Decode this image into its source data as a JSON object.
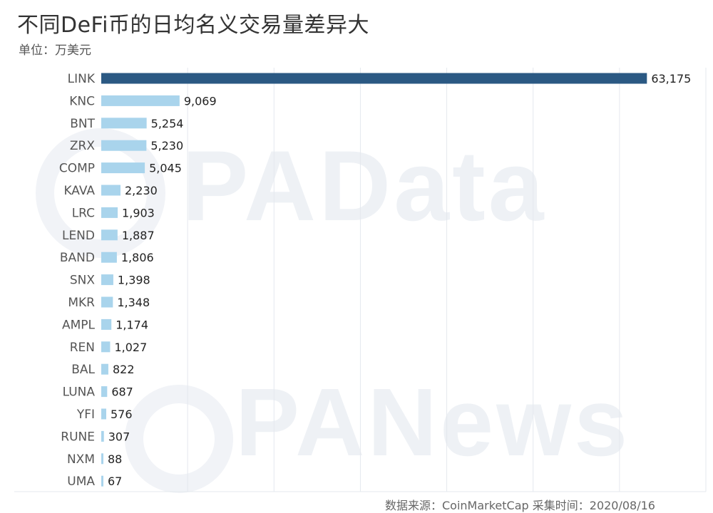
{
  "title": "不同DeFi币的日均名义交易量差异大",
  "subtitle": "单位：万美元",
  "watermark": [
    "PAData",
    "PANews"
  ],
  "source_partial": "数据来源：CoinMarketCap 采集时间：2020/08/16",
  "colors": {
    "highlight": "#2b5983",
    "bar": "#a9d4ec",
    "grid": "#e4e8ee"
  },
  "chart_data": {
    "type": "bar",
    "orientation": "horizontal",
    "title": "不同DeFi币的日均名义交易量差异大",
    "unit": "单位：万美元",
    "categories": [
      "LINK",
      "KNC",
      "BNT",
      "ZRX",
      "COMP",
      "KAVA",
      "LRC",
      "LEND",
      "BAND",
      "SNX",
      "MKR",
      "AMPL",
      "REN",
      "BAL",
      "LUNA",
      "YFI",
      "RUNE",
      "NXM",
      "UMA"
    ],
    "values": [
      63175,
      9069,
      5254,
      5230,
      5045,
      2230,
      1903,
      1887,
      1806,
      1398,
      1348,
      1174,
      1027,
      822,
      687,
      576,
      307,
      88,
      67
    ],
    "value_labels": [
      "63,175",
      "9,069",
      "5,254",
      "5,230",
      "5,045",
      "2,230",
      "1,903",
      "1,887",
      "1,806",
      "1,398",
      "1,348",
      "1,174",
      "1,027",
      "822",
      "687",
      "576",
      "307",
      "88",
      "67"
    ],
    "xlim": [
      0,
      70000
    ],
    "grid": true,
    "legend": "none"
  }
}
